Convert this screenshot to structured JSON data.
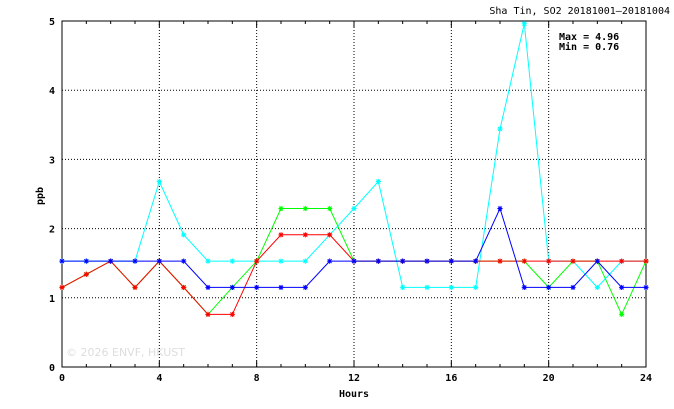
{
  "chart_data": {
    "type": "line",
    "title": "Sha Tin, SO2 20181001–20181004",
    "xlabel": "Hours",
    "ylabel": "ppb",
    "xlim": [
      0,
      24
    ],
    "ylim": [
      0,
      5
    ],
    "xticks": [
      "0",
      "4",
      "8",
      "12",
      "16",
      "20",
      "24"
    ],
    "yticks": [
      "0",
      "1",
      "2",
      "3",
      "4",
      "5"
    ],
    "grid": true,
    "annotations": {
      "max": "Max = 4.96",
      "min": "Min = 0.76"
    },
    "watermark": "© 2026  ENVF, HKUST",
    "x": [
      0,
      1,
      2,
      3,
      4,
      5,
      6,
      7,
      8,
      9,
      10,
      11,
      12,
      13,
      14,
      15,
      16,
      17,
      18,
      19,
      20,
      21,
      22,
      23,
      24
    ],
    "series": [
      {
        "color": "#00ffff",
        "values": [
          1.53,
          1.53,
          1.53,
          1.53,
          2.68,
          1.91,
          1.53,
          1.53,
          1.53,
          1.53,
          1.53,
          1.91,
          2.29,
          2.68,
          1.15,
          1.15,
          1.15,
          1.15,
          3.44,
          4.96,
          1.53,
          1.53,
          1.15,
          1.53,
          1.53
        ]
      },
      {
        "color": "#00ff00",
        "values": [
          1.15,
          1.34,
          1.53,
          1.15,
          1.53,
          1.15,
          0.76,
          1.15,
          1.53,
          2.29,
          2.29,
          2.29,
          1.53,
          1.53,
          1.53,
          1.53,
          1.53,
          1.53,
          1.53,
          1.53,
          1.15,
          1.53,
          1.53,
          0.76,
          1.53
        ]
      },
      {
        "color": "#ff0000",
        "values": [
          1.15,
          1.34,
          1.53,
          1.15,
          1.53,
          1.15,
          0.76,
          0.76,
          1.53,
          1.91,
          1.91,
          1.91,
          1.53,
          1.53,
          1.53,
          1.53,
          1.53,
          1.53,
          1.53,
          1.53,
          1.53,
          1.53,
          1.53,
          1.53,
          1.53
        ]
      },
      {
        "color": "#0000ff",
        "values": [
          1.53,
          1.53,
          1.53,
          1.53,
          1.53,
          1.53,
          1.15,
          1.15,
          1.15,
          1.15,
          1.15,
          1.53,
          1.53,
          1.53,
          1.53,
          1.53,
          1.53,
          1.53,
          2.29,
          1.15,
          1.15,
          1.15,
          1.53,
          1.15,
          1.15
        ]
      }
    ]
  }
}
